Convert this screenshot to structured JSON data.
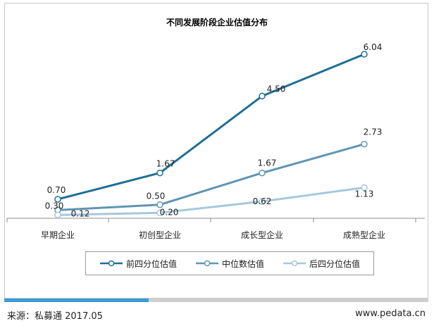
{
  "chart_data": {
    "type": "line",
    "title": "不同发展阶段企业估值分布",
    "categories": [
      "早期企业",
      "初创型企业",
      "成长型企业",
      "成熟型企业"
    ],
    "series": [
      {
        "name": "前四分位估值",
        "values": [
          0.7,
          1.67,
          4.5,
          6.04
        ],
        "labels": [
          "0.70",
          "1.67",
          "4.50",
          "6.04"
        ],
        "color": "#1f6f93"
      },
      {
        "name": "中位数估值",
        "values": [
          0.3,
          0.5,
          1.67,
          2.73
        ],
        "labels": [
          "0.30",
          "0.50",
          "1.67",
          "2.73"
        ],
        "color": "#5f95b3"
      },
      {
        "name": "后四分位估值",
        "values": [
          0.12,
          0.2,
          0.62,
          1.13
        ],
        "labels": [
          "0.12",
          "0.20",
          "0.62",
          "1.13"
        ],
        "color": "#a5c8dc"
      }
    ],
    "ylim": [
      0,
      7
    ],
    "grid": false,
    "legend_position": "bottom"
  },
  "footer": {
    "source": "来源：私募通  2017.05",
    "site": "www.pedata.cn"
  }
}
